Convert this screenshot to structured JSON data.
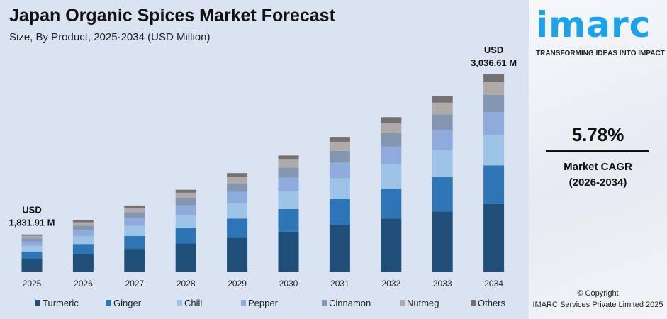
{
  "header": {
    "title": "Japan Organic Spices Market Forecast",
    "subtitle": "Size, By Product, 2025-2034 (USD Million)"
  },
  "chart_data": {
    "type": "bar",
    "stacked": true,
    "categories": [
      "2025",
      "2026",
      "2027",
      "2028",
      "2029",
      "2030",
      "2031",
      "2032",
      "2033",
      "2034"
    ],
    "totals": [
      1831.91,
      1937.8,
      2049.8,
      2168.3,
      2293.7,
      2426.3,
      2566.6,
      2715.0,
      2872.0,
      3036.61
    ],
    "series": [
      {
        "name": "Turmeric",
        "color": "#1f4e79",
        "share": 0.343
      },
      {
        "name": "Ginger",
        "color": "#2e75b6",
        "share": 0.195
      },
      {
        "name": "Chili",
        "color": "#9dc3e6",
        "share": 0.155
      },
      {
        "name": "Pepper",
        "color": "#8faadc",
        "share": 0.116
      },
      {
        "name": "Cinnamon",
        "color": "#8497b0",
        "share": 0.087
      },
      {
        "name": "Nutmeg",
        "color": "#aeaaaa",
        "share": 0.068
      },
      {
        "name": "Others",
        "color": "#757171",
        "share": 0.036
      }
    ],
    "annotations": [
      {
        "category": "2025",
        "line1": "USD",
        "line2": "1,831.91 M"
      },
      {
        "category": "2034",
        "line1": "USD",
        "line2": "3,036.61 M"
      }
    ],
    "ylim": [
      1553,
      3100
    ],
    "grid": false,
    "legend": "bottom"
  },
  "panel": {
    "logo": "imarc",
    "tagline": "TRANSFORMING IDEAS INTO IMPACT",
    "cagr_value": "5.78%",
    "cagr_label": "Market CAGR",
    "cagr_period": "(2026-2034)",
    "copyright": "© Copyright",
    "company": "IMARC Services Private Limited 2025"
  }
}
